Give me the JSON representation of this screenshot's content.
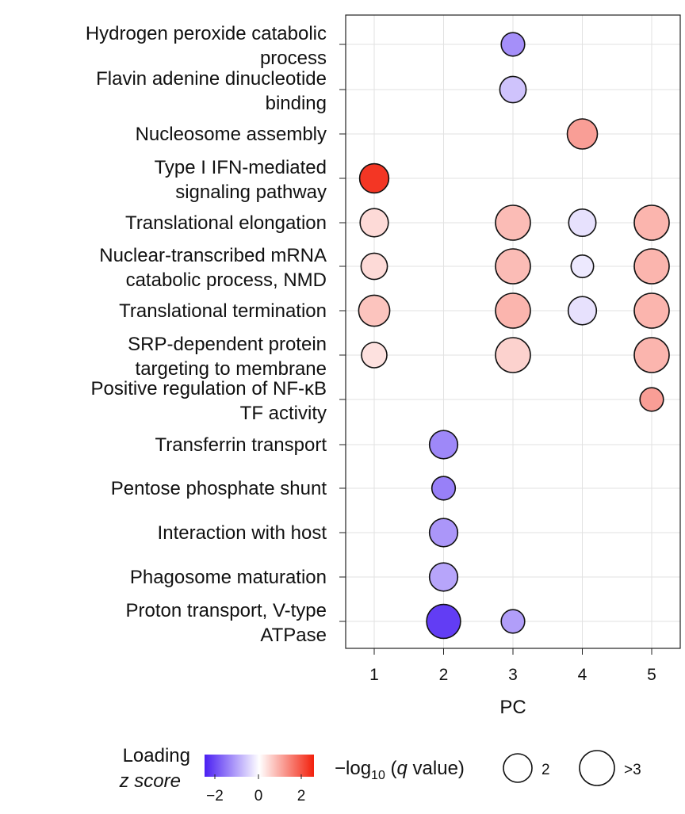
{
  "chart_data": {
    "type": "bubble",
    "xlabel": "PC",
    "x_ticks": [
      "1",
      "2",
      "3",
      "4",
      "5"
    ],
    "categories": [
      [
        "Hydrogen peroxide catabolic",
        "process"
      ],
      [
        "Flavin adenine dinucleotide",
        "binding"
      ],
      [
        "Nucleosome assembly"
      ],
      [
        "Type I IFN-mediated",
        "signaling pathway"
      ],
      [
        "Translational elongation"
      ],
      [
        "Nuclear-transcribed mRNA",
        "catabolic process, NMD"
      ],
      [
        "Translational termination"
      ],
      [
        "SRP-dependent protein",
        "targeting to membrane"
      ],
      [
        "Positive regulation of NF-κB",
        "TF activity"
      ],
      [
        "Transferrin transport"
      ],
      [
        "Pentose phosphate shunt"
      ],
      [
        "Interaction with host"
      ],
      [
        "Phagosome maturation"
      ],
      [
        "Proton transport, V-type",
        "ATPase"
      ]
    ],
    "points": [
      {
        "term": 0,
        "pc": 3,
        "z": -1.5,
        "neglog10q": 1.8
      },
      {
        "term": 1,
        "pc": 3,
        "z": -0.8,
        "neglog10q": 2.1
      },
      {
        "term": 2,
        "pc": 4,
        "z": 1.3,
        "neglog10q": 2.5
      },
      {
        "term": 3,
        "pc": 1,
        "z": 2.7,
        "neglog10q": 2.4
      },
      {
        "term": 4,
        "pc": 1,
        "z": 0.5,
        "neglog10q": 2.3
      },
      {
        "term": 4,
        "pc": 3,
        "z": 0.9,
        "neglog10q": 3.0
      },
      {
        "term": 4,
        "pc": 4,
        "z": -0.4,
        "neglog10q": 2.2
      },
      {
        "term": 4,
        "pc": 5,
        "z": 1.0,
        "neglog10q": 3.0
      },
      {
        "term": 5,
        "pc": 1,
        "z": 0.5,
        "neglog10q": 2.1
      },
      {
        "term": 5,
        "pc": 3,
        "z": 0.9,
        "neglog10q": 3.0
      },
      {
        "term": 5,
        "pc": 4,
        "z": -0.3,
        "neglog10q": 1.7
      },
      {
        "term": 5,
        "pc": 5,
        "z": 1.0,
        "neglog10q": 3.0
      },
      {
        "term": 6,
        "pc": 1,
        "z": 0.8,
        "neglog10q": 2.6
      },
      {
        "term": 6,
        "pc": 3,
        "z": 1.0,
        "neglog10q": 3.0
      },
      {
        "term": 6,
        "pc": 4,
        "z": -0.4,
        "neglog10q": 2.3
      },
      {
        "term": 6,
        "pc": 5,
        "z": 1.0,
        "neglog10q": 3.0
      },
      {
        "term": 7,
        "pc": 1,
        "z": 0.4,
        "neglog10q": 2.0
      },
      {
        "term": 7,
        "pc": 3,
        "z": 0.6,
        "neglog10q": 3.0
      },
      {
        "term": 7,
        "pc": 5,
        "z": 1.0,
        "neglog10q": 3.0
      },
      {
        "term": 8,
        "pc": 5,
        "z": 1.3,
        "neglog10q": 1.8
      },
      {
        "term": 9,
        "pc": 2,
        "z": -1.6,
        "neglog10q": 2.3
      },
      {
        "term": 10,
        "pc": 2,
        "z": -1.7,
        "neglog10q": 1.8
      },
      {
        "term": 11,
        "pc": 2,
        "z": -1.4,
        "neglog10q": 2.3
      },
      {
        "term": 12,
        "pc": 2,
        "z": -1.2,
        "neglog10q": 2.3
      },
      {
        "term": 13,
        "pc": 2,
        "z": -2.6,
        "neglog10q": 2.9
      },
      {
        "term": 13,
        "pc": 3,
        "z": -1.3,
        "neglog10q": 1.8
      }
    ],
    "color_legend": {
      "title": [
        "Loading",
        "z score"
      ],
      "ticks": [
        "−2",
        "0",
        "2"
      ],
      "low_color": "#4a1ff2",
      "mid_color": "#ffffff",
      "high_color": "#f2200c"
    },
    "size_legend": {
      "title_prefix": "−log",
      "title_sub": "10",
      "title_open": " (",
      "title_q": "q",
      "title_suffix": " value)",
      "entries": [
        "2",
        ">3"
      ]
    },
    "grid": true
  }
}
